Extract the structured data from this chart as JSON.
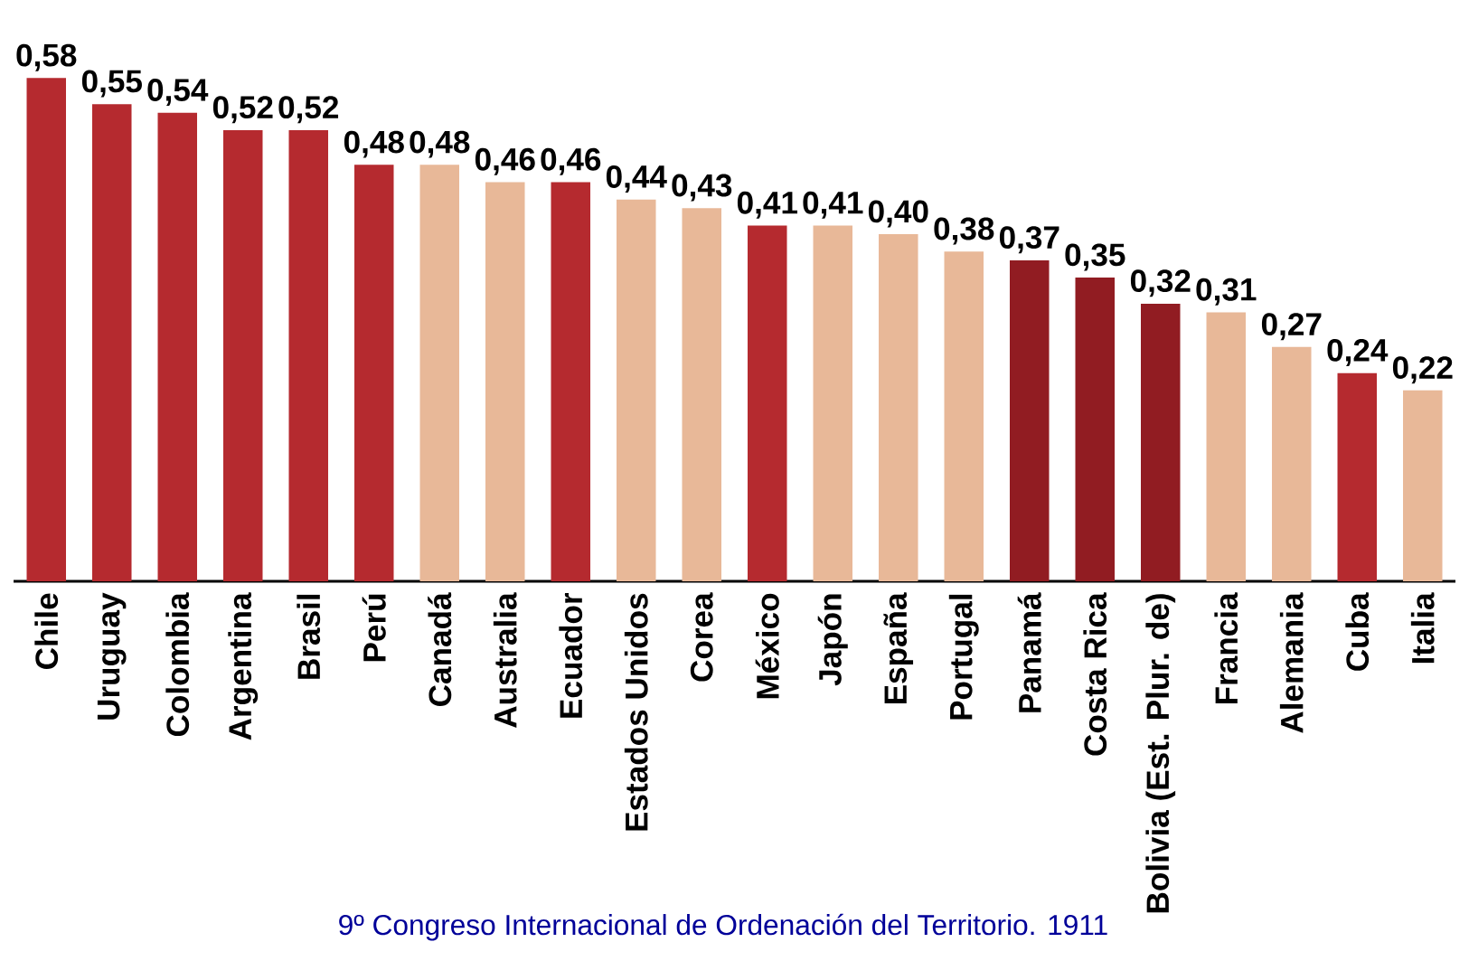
{
  "chart_data": {
    "type": "bar",
    "categories": [
      "Chile",
      "Uruguay",
      "Colombia",
      "Argentina",
      "Brasil",
      "Perú",
      "Canadá",
      "Australia",
      "Ecuador",
      "Estados Unidos",
      "Corea",
      "México",
      "Japón",
      "España",
      "Portugal",
      "Panamá",
      "Costa Rica",
      "Bolivia (Est. Plur. de)",
      "Francia",
      "Alemania",
      "Cuba",
      "Italia"
    ],
    "values": [
      0.58,
      0.55,
      0.54,
      0.52,
      0.52,
      0.48,
      0.48,
      0.46,
      0.46,
      0.44,
      0.43,
      0.41,
      0.41,
      0.4,
      0.38,
      0.37,
      0.35,
      0.32,
      0.31,
      0.27,
      0.24,
      0.22
    ],
    "value_labels": [
      "0,58",
      "0,55",
      "0,54",
      "0,52",
      "0,52",
      "0,48",
      "0,48",
      "0,46",
      "0,46",
      "0,44",
      "0,43",
      "0,41",
      "0,41",
      "0,40",
      "0,38",
      "0,37",
      "0,35",
      "0,32",
      "0,31",
      "0,27",
      "0,24",
      "0,22"
    ],
    "colors": [
      "#b52a2f",
      "#b52a2f",
      "#b52a2f",
      "#b52a2f",
      "#b52a2f",
      "#b52a2f",
      "#e8b898",
      "#e8b898",
      "#b52a2f",
      "#e8b898",
      "#e8b898",
      "#b52a2f",
      "#e8b898",
      "#e8b898",
      "#e8b898",
      "#911c22",
      "#911c22",
      "#911c22",
      "#e8b898",
      "#e8b898",
      "#b52a2f",
      "#e8b898"
    ],
    "annotations": [
      "9º Congreso Internacional de Ordenación del Territorio.   1911"
    ]
  }
}
